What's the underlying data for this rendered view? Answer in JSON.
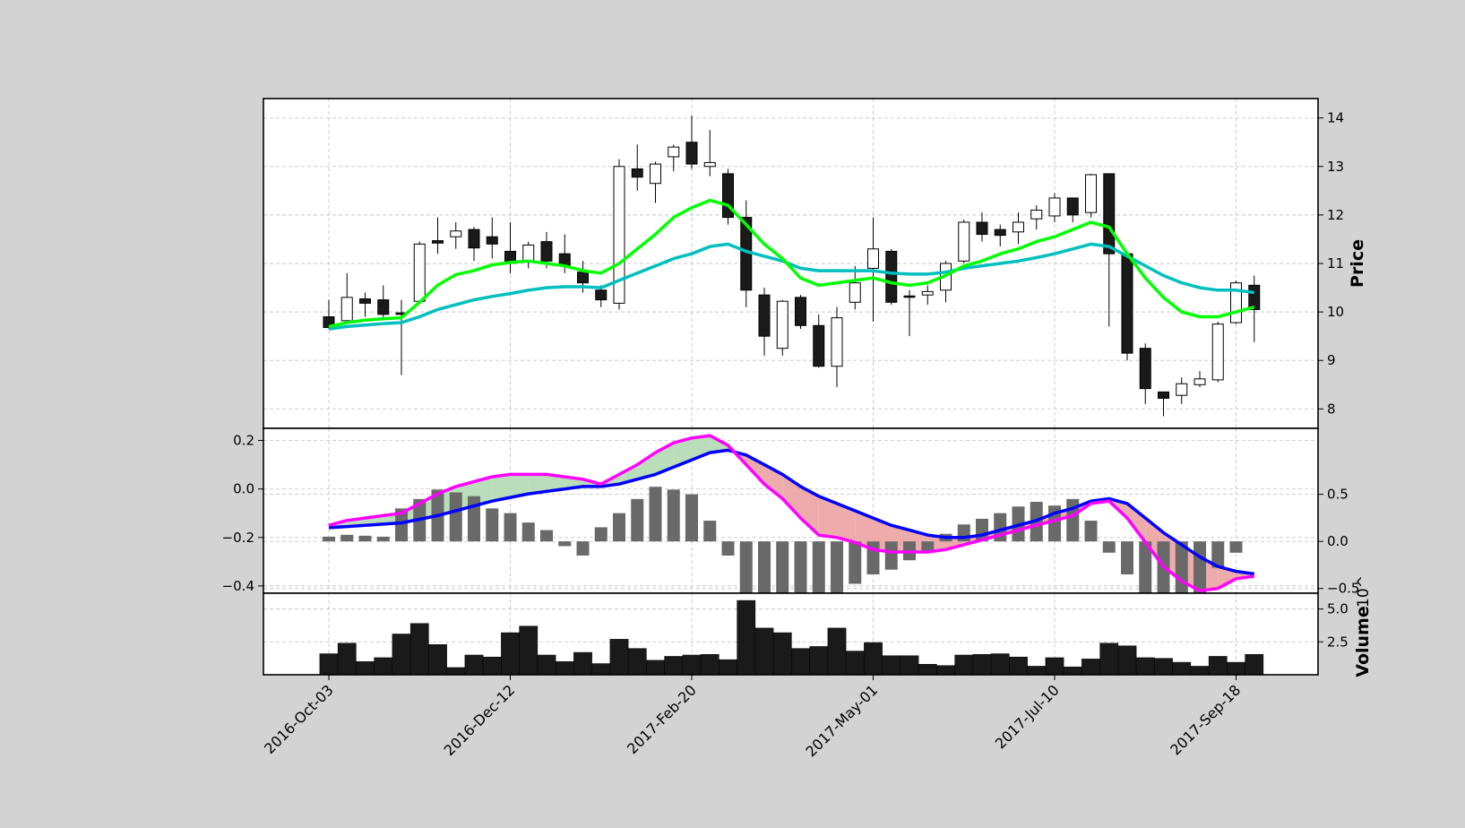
{
  "chart_data": [
    {
      "type": "candlestick",
      "title": "",
      "ylabel": "Price",
      "ylim": [
        7.6,
        14.4
      ],
      "yticks": [
        8,
        9,
        10,
        11,
        12,
        13,
        14
      ],
      "xtick_labels": [
        "2016-Oct-03",
        "2016-Dec-12",
        "2017-Feb-20",
        "2017-May-01",
        "2017-Jul-10",
        "2017-Sep-18"
      ],
      "xtick_indices": [
        0,
        10,
        20,
        30,
        40,
        50
      ],
      "grid": true,
      "colors": {
        "up_fill": "#ffffff",
        "down_fill": "#1a1a1a",
        "edge": "#000000",
        "ma_fast": "#00ff00",
        "ma_slow": "#00bfbf"
      },
      "ohlc": [
        {
          "date": "2016-Oct-03",
          "open": 9.9,
          "high": 10.25,
          "low": 9.65,
          "close": 9.68
        },
        {
          "date": "2016-Oct-10",
          "open": 9.82,
          "high": 10.8,
          "low": 9.75,
          "close": 10.3
        },
        {
          "date": "2016-Oct-17",
          "open": 10.27,
          "high": 10.4,
          "low": 9.9,
          "close": 10.18
        },
        {
          "date": "2016-Oct-24",
          "open": 10.25,
          "high": 10.55,
          "low": 9.85,
          "close": 9.95
        },
        {
          "date": "2016-Oct-31",
          "open": 9.98,
          "high": 10.25,
          "low": 8.7,
          "close": 9.95
        },
        {
          "date": "2016-Nov-07",
          "open": 10.22,
          "high": 11.45,
          "low": 10.2,
          "close": 11.4
        },
        {
          "date": "2016-Nov-14",
          "open": 11.47,
          "high": 11.95,
          "low": 11.2,
          "close": 11.42
        },
        {
          "date": "2016-Nov-21",
          "open": 11.55,
          "high": 11.85,
          "low": 11.3,
          "close": 11.67
        },
        {
          "date": "2016-Nov-28",
          "open": 11.7,
          "high": 11.75,
          "low": 11.05,
          "close": 11.32
        },
        {
          "date": "2016-Dec-05",
          "open": 11.55,
          "high": 11.95,
          "low": 11.1,
          "close": 11.4
        },
        {
          "date": "2016-Dec-12",
          "open": 11.25,
          "high": 11.85,
          "low": 10.8,
          "close": 11.0
        },
        {
          "date": "2016-Dec-19",
          "open": 11.05,
          "high": 11.45,
          "low": 10.9,
          "close": 11.38
        },
        {
          "date": "2016-Dec-26",
          "open": 11.45,
          "high": 11.65,
          "low": 10.9,
          "close": 11.05
        },
        {
          "date": "2017-Jan-02",
          "open": 11.2,
          "high": 11.6,
          "low": 10.8,
          "close": 10.95
        },
        {
          "date": "2017-Jan-09",
          "open": 10.82,
          "high": 11.05,
          "low": 10.4,
          "close": 10.6
        },
        {
          "date": "2017-Jan-16",
          "open": 10.45,
          "high": 10.55,
          "low": 10.1,
          "close": 10.25
        },
        {
          "date": "2017-Jan-23",
          "open": 10.18,
          "high": 13.15,
          "low": 10.05,
          "close": 13.0
        },
        {
          "date": "2017-Jan-30",
          "open": 12.95,
          "high": 13.45,
          "low": 12.5,
          "close": 12.78
        },
        {
          "date": "2017-Feb-06",
          "open": 12.65,
          "high": 13.1,
          "low": 12.25,
          "close": 13.05
        },
        {
          "date": "2017-Feb-13",
          "open": 13.2,
          "high": 13.45,
          "low": 12.9,
          "close": 13.4
        },
        {
          "date": "2017-Feb-20",
          "open": 13.5,
          "high": 14.05,
          "low": 12.95,
          "close": 13.05
        },
        {
          "date": "2017-Feb-27",
          "open": 13.0,
          "high": 13.75,
          "low": 12.8,
          "close": 13.08
        },
        {
          "date": "2017-Mar-06",
          "open": 12.85,
          "high": 12.95,
          "low": 11.8,
          "close": 11.95
        },
        {
          "date": "2017-Mar-13",
          "open": 11.95,
          "high": 12.3,
          "low": 10.1,
          "close": 10.45
        },
        {
          "date": "2017-Mar-20",
          "open": 10.35,
          "high": 10.5,
          "low": 9.1,
          "close": 9.5
        },
        {
          "date": "2017-Mar-27",
          "open": 9.25,
          "high": 10.25,
          "low": 9.1,
          "close": 10.22
        },
        {
          "date": "2017-Apr-03",
          "open": 10.3,
          "high": 10.35,
          "low": 9.65,
          "close": 9.72
        },
        {
          "date": "2017-Apr-10",
          "open": 9.72,
          "high": 9.95,
          "low": 8.85,
          "close": 8.88
        },
        {
          "date": "2017-Apr-17",
          "open": 8.88,
          "high": 10.1,
          "low": 8.45,
          "close": 9.88
        },
        {
          "date": "2017-Apr-24",
          "open": 10.2,
          "high": 10.95,
          "low": 10.05,
          "close": 10.6
        },
        {
          "date": "2017-May-01",
          "open": 10.9,
          "high": 11.95,
          "low": 9.8,
          "close": 11.3
        },
        {
          "date": "2017-May-08",
          "open": 11.25,
          "high": 11.3,
          "low": 10.15,
          "close": 10.2
        },
        {
          "date": "2017-May-15",
          "open": 10.33,
          "high": 10.45,
          "low": 9.5,
          "close": 10.31
        },
        {
          "date": "2017-May-22",
          "open": 10.35,
          "high": 10.55,
          "low": 10.15,
          "close": 10.42
        },
        {
          "date": "2017-May-29",
          "open": 10.45,
          "high": 11.05,
          "low": 10.2,
          "close": 11.0
        },
        {
          "date": "2017-Jun-05",
          "open": 11.05,
          "high": 11.9,
          "low": 11.0,
          "close": 11.85
        },
        {
          "date": "2017-Jun-12",
          "open": 11.85,
          "high": 12.05,
          "low": 11.45,
          "close": 11.6
        },
        {
          "date": "2017-Jun-19",
          "open": 11.7,
          "high": 11.8,
          "low": 11.35,
          "close": 11.58
        },
        {
          "date": "2017-Jun-26",
          "open": 11.65,
          "high": 12.05,
          "low": 11.4,
          "close": 11.85
        },
        {
          "date": "2017-Jul-03",
          "open": 11.92,
          "high": 12.2,
          "low": 11.7,
          "close": 12.1
        },
        {
          "date": "2017-Jul-10",
          "open": 11.98,
          "high": 12.45,
          "low": 11.85,
          "close": 12.35
        },
        {
          "date": "2017-Jul-17",
          "open": 12.35,
          "high": 12.35,
          "low": 11.85,
          "close": 12.0
        },
        {
          "date": "2017-Jul-24",
          "open": 12.05,
          "high": 12.85,
          "low": 11.95,
          "close": 12.83
        },
        {
          "date": "2017-Jul-31",
          "open": 12.85,
          "high": 12.85,
          "low": 9.7,
          "close": 11.2
        },
        {
          "date": "2017-Aug-07",
          "open": 11.2,
          "high": 11.25,
          "low": 9.0,
          "close": 9.15
        },
        {
          "date": "2017-Aug-14",
          "open": 9.25,
          "high": 9.35,
          "low": 8.1,
          "close": 8.42
        },
        {
          "date": "2017-Aug-21",
          "open": 8.35,
          "high": 8.35,
          "low": 7.85,
          "close": 8.22
        },
        {
          "date": "2017-Aug-28",
          "open": 8.28,
          "high": 8.65,
          "low": 8.1,
          "close": 8.52
        },
        {
          "date": "2017-Sep-04",
          "open": 8.5,
          "high": 8.78,
          "low": 8.45,
          "close": 8.62
        },
        {
          "date": "2017-Sep-11",
          "open": 8.6,
          "high": 9.8,
          "low": 8.55,
          "close": 9.75
        },
        {
          "date": "2017-Sep-18",
          "open": 9.78,
          "high": 10.65,
          "low": 9.75,
          "close": 10.6
        },
        {
          "date": "2017-Sep-25",
          "open": 10.55,
          "high": 10.75,
          "low": 9.38,
          "close": 10.05
        }
      ],
      "ma_fast": [
        9.7,
        9.78,
        9.83,
        9.86,
        9.88,
        10.2,
        10.55,
        10.77,
        10.85,
        10.97,
        11.02,
        11.05,
        11.0,
        10.95,
        10.85,
        10.8,
        11.0,
        11.3,
        11.6,
        11.95,
        12.15,
        12.3,
        12.2,
        11.8,
        11.4,
        11.1,
        10.7,
        10.55,
        10.6,
        10.65,
        10.7,
        10.6,
        10.55,
        10.6,
        10.75,
        10.95,
        11.05,
        11.2,
        11.3,
        11.45,
        11.55,
        11.7,
        11.85,
        11.75,
        11.2,
        10.7,
        10.3,
        10.0,
        9.9,
        9.9,
        10.0,
        10.1
      ],
      "ma_slow": [
        9.65,
        9.7,
        9.73,
        9.76,
        9.78,
        9.9,
        10.05,
        10.15,
        10.25,
        10.32,
        10.38,
        10.45,
        10.5,
        10.52,
        10.52,
        10.5,
        10.65,
        10.8,
        10.95,
        11.1,
        11.2,
        11.35,
        11.4,
        11.25,
        11.15,
        11.05,
        10.9,
        10.85,
        10.85,
        10.85,
        10.85,
        10.8,
        10.78,
        10.78,
        10.82,
        10.9,
        10.95,
        11.0,
        11.05,
        11.12,
        11.2,
        11.3,
        11.4,
        11.35,
        11.15,
        10.95,
        10.75,
        10.6,
        10.5,
        10.45,
        10.45,
        10.4
      ]
    },
    {
      "type": "macd",
      "title": "",
      "ylim_left": [
        -0.43,
        0.25
      ],
      "yticks_left": [
        -0.4,
        -0.2,
        0.0,
        0.2
      ],
      "ylim_right": [
        -0.55,
        1.2
      ],
      "yticks_right": [
        -0.5,
        0.0,
        0.5
      ],
      "grid": true,
      "colors": {
        "macd": "#ff00ff",
        "signal": "#0000ff",
        "histogram": "#696969",
        "fill_positive": "#b5dcb5",
        "fill_negative": "#eda7a7"
      },
      "macd": [
        -0.15,
        -0.13,
        -0.12,
        -0.11,
        -0.1,
        -0.06,
        -0.02,
        0.01,
        0.03,
        0.05,
        0.06,
        0.06,
        0.06,
        0.05,
        0.04,
        0.02,
        0.06,
        0.1,
        0.15,
        0.19,
        0.21,
        0.22,
        0.18,
        0.1,
        0.02,
        -0.04,
        -0.12,
        -0.19,
        -0.2,
        -0.22,
        -0.25,
        -0.26,
        -0.26,
        -0.26,
        -0.25,
        -0.23,
        -0.21,
        -0.19,
        -0.17,
        -0.15,
        -0.13,
        -0.11,
        -0.06,
        -0.05,
        -0.12,
        -0.22,
        -0.32,
        -0.38,
        -0.42,
        -0.41,
        -0.37,
        -0.36
      ],
      "signal": [
        -0.16,
        -0.155,
        -0.15,
        -0.145,
        -0.14,
        -0.125,
        -0.11,
        -0.09,
        -0.07,
        -0.05,
        -0.035,
        -0.02,
        -0.01,
        0.0,
        0.01,
        0.01,
        0.02,
        0.04,
        0.06,
        0.09,
        0.12,
        0.15,
        0.16,
        0.14,
        0.1,
        0.06,
        0.01,
        -0.03,
        -0.06,
        -0.09,
        -0.12,
        -0.15,
        -0.17,
        -0.19,
        -0.2,
        -0.2,
        -0.19,
        -0.17,
        -0.15,
        -0.13,
        -0.1,
        -0.08,
        -0.05,
        -0.04,
        -0.06,
        -0.12,
        -0.18,
        -0.23,
        -0.28,
        -0.32,
        -0.34,
        -0.35
      ],
      "histogram": [
        0.05,
        0.07,
        0.06,
        0.05,
        0.35,
        0.45,
        0.55,
        0.52,
        0.48,
        0.35,
        0.3,
        0.2,
        0.12,
        -0.05,
        -0.15,
        0.15,
        0.3,
        0.45,
        0.58,
        0.55,
        0.5,
        0.22,
        -0.15,
        -0.6,
        -0.75,
        -0.85,
        -1.0,
        -0.95,
        -0.75,
        -0.45,
        -0.35,
        -0.3,
        -0.2,
        -0.1,
        0.08,
        0.18,
        0.24,
        0.3,
        0.37,
        0.42,
        0.38,
        0.45,
        0.22,
        -0.12,
        -0.35,
        -0.6,
        -0.72,
        -0.75,
        -0.55,
        -0.28,
        -0.12,
        0.0
      ]
    },
    {
      "type": "bar",
      "title": "",
      "ylabel": "Volume",
      "y_exponent_label": "10^",
      "ylim": [
        0,
        6.2
      ],
      "yticks": [
        2.5,
        5.0
      ],
      "grid": true,
      "colors": {
        "bar": "#1a1a1a"
      },
      "values": [
        1.6,
        2.4,
        1.0,
        1.3,
        3.1,
        3.9,
        2.3,
        0.55,
        1.5,
        1.35,
        3.2,
        3.7,
        1.5,
        1.0,
        1.7,
        0.85,
        2.7,
        2.0,
        1.1,
        1.4,
        1.5,
        1.55,
        1.15,
        5.65,
        3.55,
        3.2,
        2.0,
        2.15,
        3.55,
        1.8,
        2.45,
        1.45,
        1.45,
        0.8,
        0.7,
        1.5,
        1.55,
        1.6,
        1.35,
        0.65,
        1.3,
        0.6,
        1.2,
        2.4,
        2.2,
        1.3,
        1.25,
        0.95,
        0.65,
        1.4,
        0.95,
        1.55
      ]
    }
  ]
}
